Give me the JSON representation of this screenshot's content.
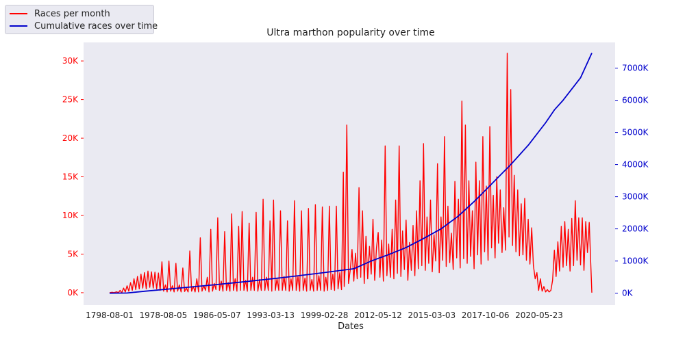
{
  "chart_data": {
    "type": "line",
    "title": "Ultra marthon popularity over time",
    "xlabel": "Dates",
    "x_tick_labels": [
      "1798-08-01",
      "1978-08-05",
      "1986-05-07",
      "1993-03-13",
      "1999-02-28",
      "2012-05-12",
      "2015-03-03",
      "2017-10-06",
      "2020-05-23"
    ],
    "y_left": {
      "ticks": [
        0,
        5000,
        10000,
        15000,
        20000,
        25000,
        30000
      ],
      "tick_labels": [
        "0K",
        "5K",
        "10K",
        "15K",
        "20K",
        "25K",
        "30K"
      ],
      "color": "#ff0000",
      "ylim": [
        -1600,
        32400
      ]
    },
    "y_right": {
      "ticks": [
        0,
        1000000,
        2000000,
        3000000,
        4000000,
        5000000,
        6000000,
        7000000
      ],
      "tick_labels": [
        "0K",
        "1000K",
        "2000K",
        "3000K",
        "4000K",
        "5000K",
        "6000K",
        "7000K"
      ],
      "color": "#0000cc",
      "ylim": [
        -370000,
        7800000
      ]
    },
    "grid": false,
    "legend_position": "top-left (outside plot)",
    "series": [
      {
        "name": "Races per month",
        "axis": "left",
        "color": "#ff0000",
        "points": [
          [
            0,
            0
          ],
          [
            3,
            60
          ],
          [
            5,
            0
          ],
          [
            8,
            120
          ],
          [
            10,
            0
          ],
          [
            12,
            300
          ],
          [
            14,
            0
          ],
          [
            16,
            600
          ],
          [
            18,
            100
          ],
          [
            20,
            900
          ],
          [
            22,
            200
          ],
          [
            24,
            1300
          ],
          [
            26,
            300
          ],
          [
            28,
            1800
          ],
          [
            30,
            400
          ],
          [
            32,
            2100
          ],
          [
            34,
            500
          ],
          [
            36,
            2400
          ],
          [
            38,
            600
          ],
          [
            40,
            2600
          ],
          [
            42,
            500
          ],
          [
            44,
            2800
          ],
          [
            46,
            700
          ],
          [
            48,
            2700
          ],
          [
            50,
            600
          ],
          [
            52,
            2650
          ],
          [
            54,
            500
          ],
          [
            56,
            2550
          ],
          [
            58,
            300
          ],
          [
            60,
            4000
          ],
          [
            62,
            200
          ],
          [
            64,
            1000
          ],
          [
            66,
            100
          ],
          [
            68,
            4100
          ],
          [
            70,
            200
          ],
          [
            72,
            900
          ],
          [
            74,
            100
          ],
          [
            76,
            3800
          ],
          [
            78,
            200
          ],
          [
            80,
            1000
          ],
          [
            82,
            100
          ],
          [
            84,
            3200
          ],
          [
            86,
            150
          ],
          [
            88,
            600
          ],
          [
            90,
            100
          ],
          [
            92,
            5400
          ],
          [
            94,
            200
          ],
          [
            96,
            800
          ],
          [
            98,
            100
          ],
          [
            100,
            1800
          ],
          [
            102,
            100
          ],
          [
            104,
            7100
          ],
          [
            106,
            200
          ],
          [
            108,
            900
          ],
          [
            110,
            300
          ],
          [
            112,
            2000
          ],
          [
            114,
            100
          ],
          [
            116,
            8200
          ],
          [
            118,
            200
          ],
          [
            120,
            1200
          ],
          [
            122,
            400
          ],
          [
            124,
            9700
          ],
          [
            126,
            300
          ],
          [
            128,
            1500
          ],
          [
            130,
            200
          ],
          [
            132,
            7900
          ],
          [
            134,
            300
          ],
          [
            136,
            1300
          ],
          [
            138,
            200
          ],
          [
            140,
            10200
          ],
          [
            142,
            300
          ],
          [
            144,
            1800
          ],
          [
            146,
            200
          ],
          [
            148,
            8600
          ],
          [
            150,
            300
          ],
          [
            152,
            10500
          ],
          [
            154,
            300
          ],
          [
            156,
            1600
          ],
          [
            158,
            200
          ],
          [
            160,
            9000
          ],
          [
            162,
            300
          ],
          [
            164,
            2000
          ],
          [
            166,
            300
          ],
          [
            168,
            10400
          ],
          [
            170,
            200
          ],
          [
            172,
            1700
          ],
          [
            174,
            300
          ],
          [
            176,
            12100
          ],
          [
            178,
            300
          ],
          [
            180,
            2000
          ],
          [
            182,
            300
          ],
          [
            184,
            9300
          ],
          [
            186,
            200
          ],
          [
            188,
            12000
          ],
          [
            190,
            300
          ],
          [
            192,
            1800
          ],
          [
            194,
            300
          ],
          [
            196,
            10600
          ],
          [
            198,
            300
          ],
          [
            200,
            2100
          ],
          [
            202,
            300
          ],
          [
            204,
            9300
          ],
          [
            206,
            200
          ],
          [
            208,
            1800
          ],
          [
            210,
            300
          ],
          [
            212,
            11900
          ],
          [
            214,
            300
          ],
          [
            216,
            2100
          ],
          [
            218,
            200
          ],
          [
            220,
            10600
          ],
          [
            222,
            300
          ],
          [
            224,
            1900
          ],
          [
            226,
            200
          ],
          [
            228,
            10900
          ],
          [
            230,
            300
          ],
          [
            232,
            1700
          ],
          [
            234,
            200
          ],
          [
            236,
            11400
          ],
          [
            238,
            300
          ],
          [
            240,
            2200
          ],
          [
            242,
            300
          ],
          [
            244,
            11100
          ],
          [
            246,
            200
          ],
          [
            248,
            2000
          ],
          [
            250,
            300
          ],
          [
            252,
            11200
          ],
          [
            254,
            400
          ],
          [
            256,
            2400
          ],
          [
            258,
            300
          ],
          [
            260,
            11200
          ],
          [
            262,
            500
          ],
          [
            264,
            2600
          ],
          [
            266,
            400
          ],
          [
            268,
            15600
          ],
          [
            269,
            800
          ],
          [
            270,
            2800
          ],
          [
            272,
            21700
          ],
          [
            274,
            1200
          ],
          [
            276,
            3000
          ],
          [
            278,
            5600
          ],
          [
            280,
            1500
          ],
          [
            282,
            5100
          ],
          [
            284,
            1800
          ],
          [
            286,
            13600
          ],
          [
            288,
            2000
          ],
          [
            290,
            10600
          ],
          [
            292,
            1200
          ],
          [
            294,
            7300
          ],
          [
            296,
            1800
          ],
          [
            298,
            6000
          ],
          [
            300,
            2400
          ],
          [
            302,
            9500
          ],
          [
            304,
            1600
          ],
          [
            306,
            5800
          ],
          [
            308,
            7800
          ],
          [
            310,
            2000
          ],
          [
            312,
            6800
          ],
          [
            314,
            1500
          ],
          [
            316,
            19000
          ],
          [
            318,
            2200
          ],
          [
            320,
            6300
          ],
          [
            322,
            2000
          ],
          [
            324,
            8200
          ],
          [
            326,
            1800
          ],
          [
            328,
            12000
          ],
          [
            330,
            2500
          ],
          [
            332,
            19000
          ],
          [
            334,
            2100
          ],
          [
            336,
            8000
          ],
          [
            338,
            3000
          ],
          [
            340,
            9400
          ],
          [
            342,
            1600
          ],
          [
            344,
            6500
          ],
          [
            346,
            2900
          ],
          [
            348,
            8700
          ],
          [
            350,
            2200
          ],
          [
            352,
            10600
          ],
          [
            354,
            3100
          ],
          [
            356,
            14500
          ],
          [
            358,
            3500
          ],
          [
            360,
            19300
          ],
          [
            362,
            2900
          ],
          [
            364,
            9800
          ],
          [
            366,
            3800
          ],
          [
            368,
            12000
          ],
          [
            370,
            2700
          ],
          [
            372,
            7500
          ],
          [
            374,
            4100
          ],
          [
            376,
            16700
          ],
          [
            378,
            2600
          ],
          [
            380,
            9800
          ],
          [
            382,
            4200
          ],
          [
            384,
            20200
          ],
          [
            386,
            3400
          ],
          [
            388,
            11200
          ],
          [
            390,
            3900
          ],
          [
            392,
            7700
          ],
          [
            394,
            3000
          ],
          [
            396,
            14400
          ],
          [
            398,
            4500
          ],
          [
            400,
            12100
          ],
          [
            402,
            3200
          ],
          [
            404,
            24800
          ],
          [
            406,
            4400
          ],
          [
            408,
            21700
          ],
          [
            410,
            3800
          ],
          [
            412,
            14500
          ],
          [
            414,
            4700
          ],
          [
            416,
            10600
          ],
          [
            418,
            3100
          ],
          [
            420,
            16900
          ],
          [
            422,
            4900
          ],
          [
            424,
            14500
          ],
          [
            426,
            3700
          ],
          [
            428,
            20200
          ],
          [
            430,
            5300
          ],
          [
            432,
            13800
          ],
          [
            434,
            4200
          ],
          [
            436,
            21500
          ],
          [
            438,
            5800
          ],
          [
            440,
            12600
          ],
          [
            442,
            4500
          ],
          [
            444,
            15000
          ],
          [
            446,
            6400
          ],
          [
            448,
            13300
          ],
          [
            450,
            5200
          ],
          [
            452,
            11000
          ],
          [
            454,
            5500
          ],
          [
            456,
            31000
          ],
          [
            458,
            7200
          ],
          [
            460,
            26300
          ],
          [
            462,
            6100
          ],
          [
            464,
            15200
          ],
          [
            466,
            5300
          ],
          [
            468,
            13300
          ],
          [
            470,
            4800
          ],
          [
            472,
            11500
          ],
          [
            474,
            4900
          ],
          [
            476,
            12200
          ],
          [
            478,
            4200
          ],
          [
            480,
            9500
          ],
          [
            482,
            3700
          ],
          [
            484,
            8400
          ],
          [
            486,
            3500
          ],
          [
            488,
            1800
          ],
          [
            490,
            2600
          ],
          [
            492,
            300
          ],
          [
            494,
            1800
          ],
          [
            496,
            200
          ],
          [
            498,
            800
          ],
          [
            500,
            100
          ],
          [
            502,
            400
          ],
          [
            504,
            100
          ],
          [
            506,
            300
          ],
          [
            508,
            1600
          ],
          [
            510,
            5500
          ],
          [
            512,
            2100
          ],
          [
            514,
            6600
          ],
          [
            516,
            2800
          ],
          [
            518,
            8600
          ],
          [
            520,
            3300
          ],
          [
            522,
            9200
          ],
          [
            524,
            3500
          ],
          [
            526,
            8200
          ],
          [
            528,
            2800
          ],
          [
            530,
            9600
          ],
          [
            532,
            3500
          ],
          [
            534,
            11900
          ],
          [
            536,
            4200
          ],
          [
            538,
            9700
          ],
          [
            540,
            3600
          ],
          [
            542,
            9700
          ],
          [
            544,
            2900
          ],
          [
            546,
            9200
          ],
          [
            548,
            5200
          ],
          [
            550,
            9100
          ],
          [
            552,
            3100
          ],
          [
            553,
            0
          ]
        ]
      },
      {
        "name": "Cumulative races over time",
        "axis": "right",
        "color": "#0000cc",
        "points": [
          [
            0,
            0
          ],
          [
            20,
            4000
          ],
          [
            40,
            60000
          ],
          [
            80,
            160000
          ],
          [
            120,
            260000
          ],
          [
            160,
            370000
          ],
          [
            200,
            490000
          ],
          [
            240,
            620000
          ],
          [
            280,
            760000
          ],
          [
            300,
            1000000
          ],
          [
            320,
            1200000
          ],
          [
            340,
            1420000
          ],
          [
            360,
            1700000
          ],
          [
            380,
            2000000
          ],
          [
            400,
            2400000
          ],
          [
            420,
            2900000
          ],
          [
            440,
            3450000
          ],
          [
            460,
            4000000
          ],
          [
            480,
            4600000
          ],
          [
            500,
            5300000
          ],
          [
            510,
            5700000
          ],
          [
            520,
            6000000
          ],
          [
            530,
            6350000
          ],
          [
            540,
            6700000
          ],
          [
            553,
            7470000
          ]
        ]
      }
    ]
  }
}
